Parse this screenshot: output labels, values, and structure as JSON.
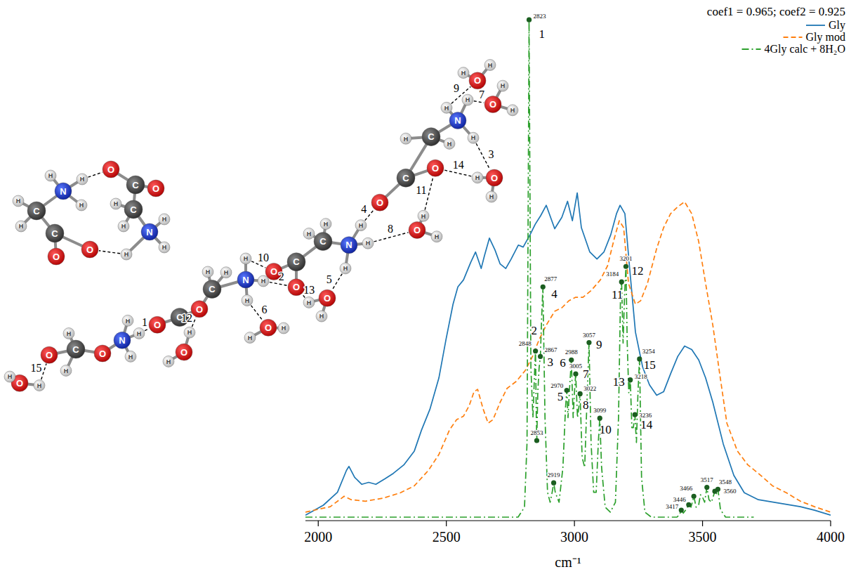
{
  "chart_data": {
    "type": "line",
    "subtitle": "coef1 = 0.965; coef2 = 0.925",
    "x_label": "cm⁻¹",
    "xlim": [
      1950,
      4000
    ],
    "xticks": [
      2000,
      2500,
      3000,
      3500,
      4000
    ],
    "ylim": [
      0,
      1.02
    ],
    "tick_labels": "x",
    "grid": false,
    "legend": "upper right",
    "series": [
      {
        "name": "Gly",
        "color": "#1f77b4",
        "line_style": "solid",
        "x": [
          1950,
          2020,
          2075,
          2110,
          2120,
          2142,
          2170,
          2197,
          2225,
          2260,
          2293,
          2334,
          2375,
          2403,
          2436,
          2471,
          2499,
          2526,
          2545,
          2567,
          2595,
          2614,
          2636,
          2649,
          2668,
          2690,
          2710,
          2732,
          2753,
          2781,
          2800,
          2827,
          2847,
          2868,
          2890,
          2923,
          2951,
          2973,
          2992,
          3011,
          3027,
          3060,
          3088,
          3115,
          3142,
          3164,
          3178,
          3197,
          3216,
          3238,
          3266,
          3293,
          3321,
          3348,
          3375,
          3403,
          3430,
          3458,
          3485,
          3512,
          3540,
          3581,
          3622,
          3663,
          3718,
          3800,
          3882,
          3937,
          4000
        ],
        "values": [
          0.004,
          0.024,
          0.05,
          0.094,
          0.102,
          0.08,
          0.066,
          0.07,
          0.066,
          0.077,
          0.088,
          0.105,
          0.133,
          0.175,
          0.217,
          0.28,
          0.358,
          0.428,
          0.463,
          0.477,
          0.512,
          0.533,
          0.5,
          0.526,
          0.561,
          0.537,
          0.509,
          0.5,
          0.519,
          0.547,
          0.543,
          0.568,
          0.589,
          0.606,
          0.627,
          0.58,
          0.603,
          0.635,
          0.596,
          0.652,
          0.582,
          0.533,
          0.519,
          0.533,
          0.568,
          0.61,
          0.627,
          0.61,
          0.498,
          0.372,
          0.302,
          0.266,
          0.245,
          0.252,
          0.288,
          0.323,
          0.344,
          0.337,
          0.316,
          0.28,
          0.231,
          0.147,
          0.084,
          0.049,
          0.035,
          0.028,
          0.021,
          0.014,
          0.004
        ]
      },
      {
        "name": "Gly mod",
        "color": "#ff7f0e",
        "line_style": "dashed",
        "x": [
          1950,
          2047,
          2101,
          2129,
          2184,
          2252,
          2321,
          2375,
          2430,
          2471,
          2512,
          2540,
          2567,
          2589,
          2608,
          2622,
          2644,
          2663,
          2682,
          2710,
          2737,
          2773,
          2808,
          2836,
          2863,
          2890,
          2923,
          2951,
          2978,
          3005,
          3033,
          3066,
          3101,
          3129,
          3156,
          3175,
          3192,
          3211,
          3238,
          3258,
          3285,
          3321,
          3348,
          3375,
          3403,
          3430,
          3458,
          3485,
          3512,
          3540,
          3567,
          3595,
          3636,
          3677,
          3718,
          3773,
          3827,
          3882,
          3937,
          4000
        ],
        "values": [
          0.01,
          0.021,
          0.042,
          0.035,
          0.032,
          0.038,
          0.049,
          0.063,
          0.094,
          0.126,
          0.175,
          0.196,
          0.203,
          0.224,
          0.252,
          0.257,
          0.217,
          0.189,
          0.196,
          0.231,
          0.259,
          0.273,
          0.295,
          0.323,
          0.358,
          0.386,
          0.414,
          0.421,
          0.435,
          0.442,
          0.442,
          0.456,
          0.477,
          0.505,
          0.561,
          0.596,
          0.582,
          0.47,
          0.428,
          0.435,
          0.47,
          0.54,
          0.582,
          0.61,
          0.624,
          0.634,
          0.61,
          0.554,
          0.47,
          0.386,
          0.288,
          0.189,
          0.133,
          0.105,
          0.088,
          0.063,
          0.049,
          0.032,
          0.021,
          0.01
        ]
      },
      {
        "name": "4Gly calc + 8H₂O",
        "color": "#2ca02c",
        "line_style": "dashdot",
        "x": [
          1950,
          2780,
          2805,
          2815,
          2823,
          2830,
          2838,
          2845,
          2848,
          2851,
          2853,
          2857,
          2862,
          2867,
          2872,
          2877,
          2885,
          2895,
          2905,
          2913,
          2919,
          2925,
          2940,
          2955,
          2965,
          2970,
          2975,
          2980,
          2988,
          2995,
          3000,
          3005,
          3012,
          3017,
          3022,
          3030,
          3040,
          3050,
          3057,
          3065,
          3075,
          3085,
          3093,
          3099,
          3106,
          3120,
          3140,
          3160,
          3172,
          3180,
          3184,
          3190,
          3196,
          3201,
          3206,
          3212,
          3218,
          3224,
          3230,
          3236,
          3242,
          3248,
          3254,
          3262,
          3275,
          3300,
          3400,
          3410,
          3417,
          3425,
          3435,
          3446,
          3455,
          3466,
          3475,
          3485,
          3492,
          3500,
          3508,
          3517,
          3525,
          3535,
          3548,
          3553,
          3560,
          3570,
          3590,
          3700
        ],
        "values": [
          0,
          0,
          0.02,
          0.15,
          1.0,
          0.3,
          0.2,
          0.3,
          0.334,
          0.2,
          0.154,
          0.25,
          0.3,
          0.323,
          0.4,
          0.463,
          0.2,
          0.05,
          0.03,
          0.05,
          0.069,
          0.05,
          0.03,
          0.1,
          0.22,
          0.255,
          0.2,
          0.25,
          0.316,
          0.2,
          0.25,
          0.288,
          0.2,
          0.22,
          0.248,
          0.12,
          0.1,
          0.25,
          0.351,
          0.15,
          0.05,
          0.05,
          0.15,
          0.199,
          0.1,
          0.02,
          0.01,
          0.03,
          0.2,
          0.45,
          0.473,
          0.35,
          0.45,
          0.504,
          0.35,
          0.25,
          0.276,
          0.18,
          0.18,
          0.206,
          0.15,
          0.25,
          0.318,
          0.08,
          0.01,
          0,
          0,
          0.005,
          0.014,
          0.008,
          0.015,
          0.025,
          0.02,
          0.042,
          0.02,
          0.025,
          0.045,
          0.04,
          0.03,
          0.06,
          0.035,
          0.03,
          0.052,
          0.045,
          0.056,
          0.015,
          0,
          0
        ]
      }
    ],
    "peaks": [
      {
        "x": 2823,
        "y": 1.0,
        "mode": "1"
      },
      {
        "x": 2848,
        "y": 0.334,
        "mode": "2"
      },
      {
        "x": 2853,
        "y": 0.154
      },
      {
        "x": 2867,
        "y": 0.323,
        "mode": "3"
      },
      {
        "x": 2877,
        "y": 0.463,
        "mode": "4"
      },
      {
        "x": 2919,
        "y": 0.069
      },
      {
        "x": 2970,
        "y": 0.255,
        "mode": "5"
      },
      {
        "x": 2988,
        "y": 0.316,
        "mode": "6"
      },
      {
        "x": 3005,
        "y": 0.288,
        "mode": "7"
      },
      {
        "x": 3022,
        "y": 0.248,
        "mode": "8"
      },
      {
        "x": 3057,
        "y": 0.351,
        "mode": "9"
      },
      {
        "x": 3099,
        "y": 0.199,
        "mode": "10"
      },
      {
        "x": 3184,
        "y": 0.473,
        "mode": "11"
      },
      {
        "x": 3201,
        "y": 0.504,
        "mode": "12"
      },
      {
        "x": 3218,
        "y": 0.276,
        "mode": "13"
      },
      {
        "x": 3236,
        "y": 0.206,
        "mode": "14"
      },
      {
        "x": 3254,
        "y": 0.318,
        "mode": "15"
      },
      {
        "x": 3417,
        "y": 0.014
      },
      {
        "x": 3446,
        "y": 0.025
      },
      {
        "x": 3466,
        "y": 0.042
      },
      {
        "x": 3517,
        "y": 0.06
      },
      {
        "x": 3548,
        "y": 0.052
      },
      {
        "x": 3560,
        "y": 0.056
      }
    ]
  },
  "molecule": {
    "atoms": [
      "N",
      "H",
      "H",
      "H",
      "C",
      "H",
      "H",
      "C",
      "O",
      "O",
      "O",
      "C",
      "O",
      "C",
      "H",
      "H",
      "N",
      "H",
      "H",
      "H",
      "O",
      "H",
      "H",
      "O",
      "C",
      "O",
      "H",
      "H",
      "N",
      "H",
      "H",
      "H",
      "O",
      "C",
      "O",
      "C",
      "H",
      "H",
      "N",
      "H",
      "H",
      "H",
      "O",
      "H",
      "H",
      "O",
      "H",
      "H",
      "O",
      "C",
      "O",
      "C",
      "H",
      "H",
      "N",
      "H",
      "H",
      "H",
      "O",
      "H",
      "H",
      "O",
      "H",
      "H",
      "O",
      "C",
      "O",
      "C",
      "H",
      "H",
      "N",
      "H",
      "H",
      "H",
      "O",
      "H",
      "H",
      "O",
      "H",
      "H",
      "O",
      "H",
      "H"
    ],
    "hbond_labels": [
      "15",
      "1",
      "12",
      "2",
      "10",
      "6",
      "13",
      "5",
      "4",
      "8",
      "11",
      "14",
      "3",
      "7",
      "9"
    ]
  }
}
